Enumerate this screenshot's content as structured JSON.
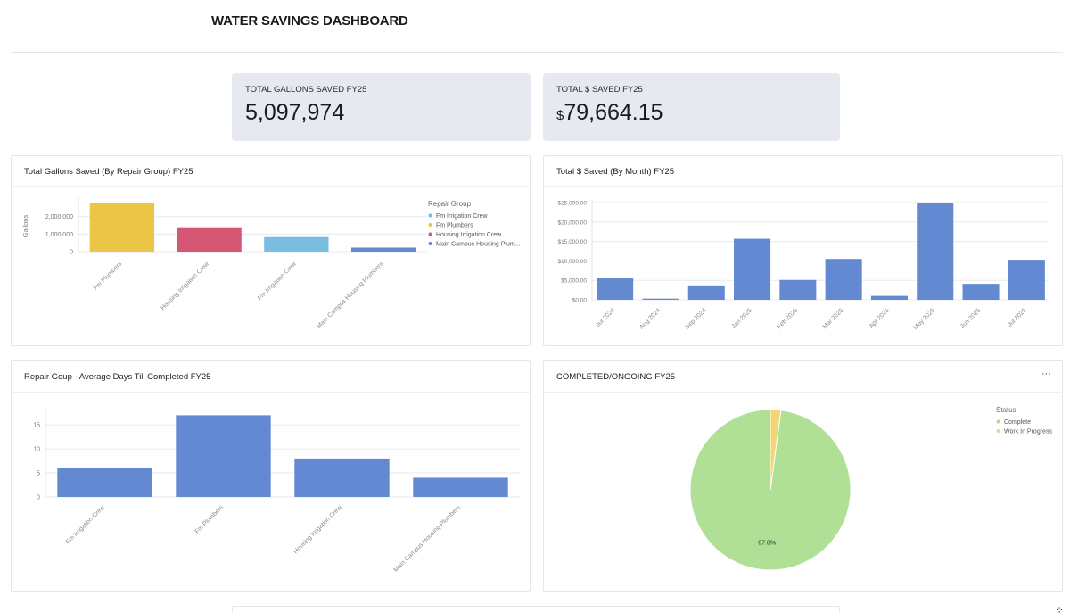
{
  "page": {
    "title": "WATER SAVINGS DASHBOARD"
  },
  "kpis": [
    {
      "label": "TOTAL GALLONS SAVED FY25",
      "prefix": "",
      "value": "5,097,974"
    },
    {
      "label": "TOTAL $ SAVED FY25",
      "prefix": "$",
      "value": "79,664.15"
    }
  ],
  "panels": {
    "gallons_by_group": {
      "title": "Total Gallons Saved (By Repair Group) FY25"
    },
    "dollars_by_month": {
      "title": "Total $ Saved (By Month) FY25"
    },
    "avg_days": {
      "title": "Repair Goup - Average Days Till Completed FY25"
    },
    "completed_ongoing": {
      "title": "COMPLETED/ONGOING FY25",
      "menu_icon": "more-horizontal-icon"
    }
  },
  "colors": {
    "blue": "#6289d1",
    "yellow": "#eac546",
    "red": "#d45873",
    "light_blue": "#7bbde0",
    "green": "#b0df96",
    "pale_yellow": "#f2d676"
  },
  "chart_data": [
    {
      "type": "bar",
      "title": "Total Gallons Saved (By Repair Group) FY25",
      "categories": [
        "Fm Plumbers",
        "Housing Irrigation Crew",
        "Fm Irrigation Crew",
        "Main Campus Housing Plumbers"
      ],
      "values": [
        2800000,
        1390000,
        830000,
        230000
      ],
      "bar_colors": [
        "#eac546",
        "#d45873",
        "#7bbde0",
        "#6289d1"
      ],
      "ylabel": "Gallons",
      "yticks": [
        0,
        1000000,
        2000000
      ],
      "ytick_labels": [
        "0",
        "1,000,000",
        "2,000,000"
      ],
      "ylim": [
        0,
        2900000
      ],
      "grid": true,
      "legend": {
        "title": "Repair Group",
        "placement": "right",
        "entries": [
          {
            "label": "Fm Irrigation Crew",
            "color": "#7bbde0"
          },
          {
            "label": "Fm Plumbers",
            "color": "#eac546"
          },
          {
            "label": "Housing Irrigation Crew",
            "color": "#d45873"
          },
          {
            "label": "Main Campus Housing Plum...",
            "color": "#6289d1"
          }
        ]
      }
    },
    {
      "type": "bar",
      "title": "Total $ Saved (By Month) FY25",
      "categories": [
        "Jul 2024",
        "Aug 2024",
        "Sep 2024",
        "Jan 2025",
        "Feb 2025",
        "Mar 2025",
        "Apr 2025",
        "May 2025",
        "Jun 2025",
        "Jul 2025"
      ],
      "values": [
        5500,
        300,
        3700,
        15700,
        5100,
        10500,
        1000,
        25000,
        4100,
        10300
      ],
      "color": "#6289d1",
      "yticks": [
        0,
        5000,
        10000,
        15000,
        20000,
        25000
      ],
      "ytick_labels": [
        "$0.00",
        "$5,000.00",
        "$10,000.00",
        "$15,000.00",
        "$20,000.00",
        "$25,000.00"
      ],
      "ylim": [
        0,
        25000
      ],
      "grid": true
    },
    {
      "type": "bar",
      "title": "Repair Goup - Average Days Till Completed FY25",
      "categories": [
        "Fm Irrigation Crew",
        "Fm Plumbers",
        "Housing Irrigation Crew",
        "Main Campus Housing Plumbers"
      ],
      "values": [
        6,
        17,
        8,
        4
      ],
      "color": "#6289d1",
      "yticks": [
        0,
        5,
        10,
        15
      ],
      "ytick_labels": [
        "0",
        "5",
        "10",
        "15"
      ],
      "ylim": [
        0,
        18
      ],
      "grid": true
    },
    {
      "type": "pie",
      "title": "COMPLETED/ONGOING FY25",
      "slices": [
        {
          "label": "Complete",
          "value": 97.9,
          "color": "#b0df96",
          "data_label": "97.9%"
        },
        {
          "label": "Work In Progress",
          "value": 2.1,
          "color": "#f2d676",
          "data_label": ""
        }
      ],
      "legend": {
        "title": "Status",
        "placement": "right"
      }
    }
  ]
}
